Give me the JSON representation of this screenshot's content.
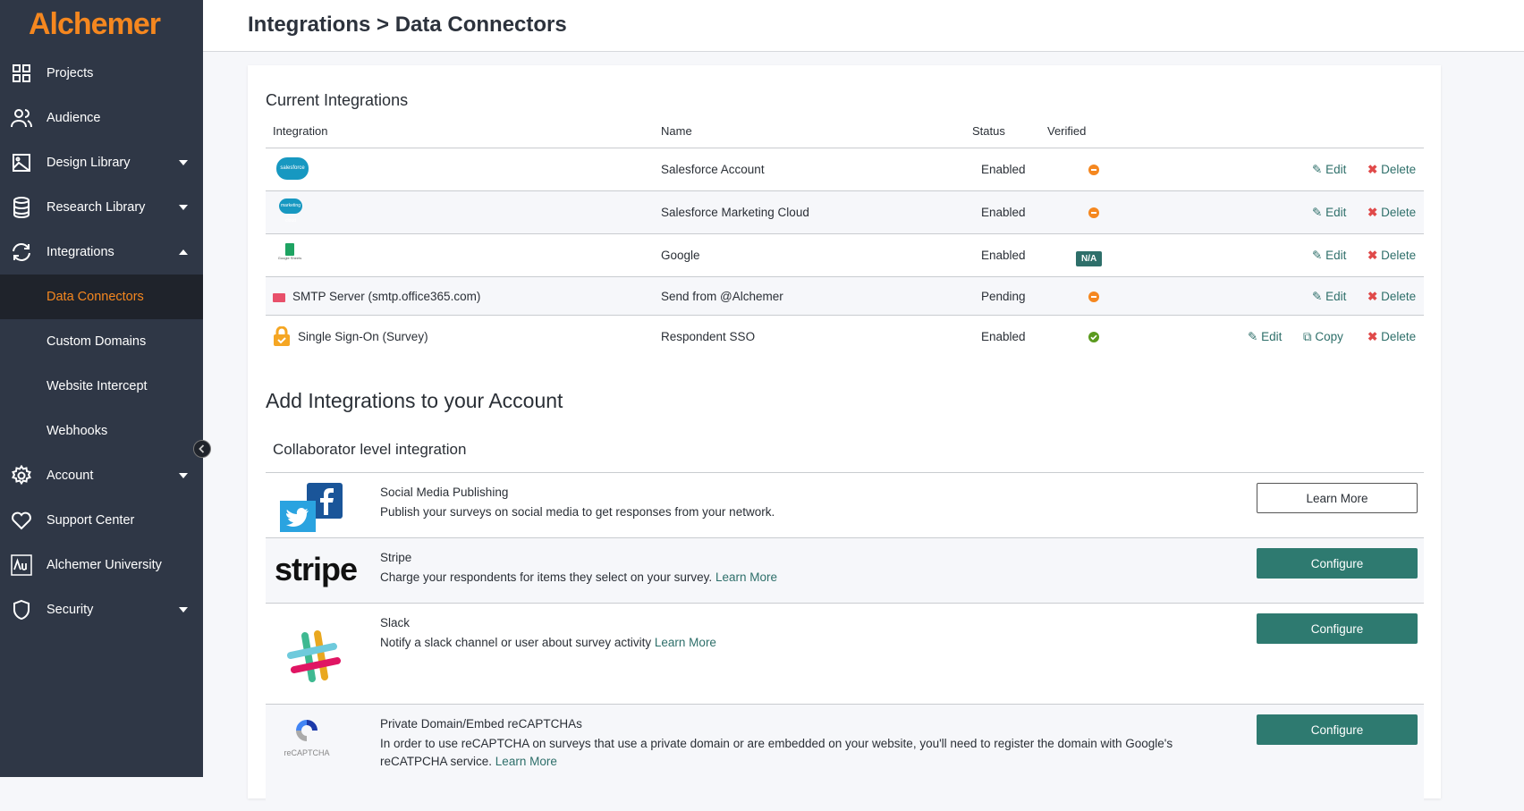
{
  "brand": {
    "logo": "Alchemer",
    "accent": "#f5871f",
    "teal": "#2e7a70"
  },
  "header": {
    "title": "Integrations > Data Connectors"
  },
  "sidebar": {
    "items": [
      {
        "label": "Projects",
        "icon": "grid-icon"
      },
      {
        "label": "Audience",
        "icon": "users-icon"
      },
      {
        "label": "Design Library",
        "icon": "image-icon",
        "caret": "down"
      },
      {
        "label": "Research Library",
        "icon": "database-icon",
        "caret": "down"
      },
      {
        "label": "Integrations",
        "icon": "sync-icon",
        "caret": "up"
      },
      {
        "label": "Data Connectors",
        "active": true
      },
      {
        "label": "Custom Domains"
      },
      {
        "label": "Website Intercept"
      },
      {
        "label": "Webhooks"
      },
      {
        "label": "Account",
        "icon": "gear-icon",
        "caret": "down"
      },
      {
        "label": "Support Center",
        "icon": "heart-icon"
      },
      {
        "label": "Alchemer University",
        "icon": "au-icon"
      },
      {
        "label": "Security",
        "icon": "shield-icon",
        "caret": "down"
      }
    ]
  },
  "current": {
    "title": "Current Integrations",
    "columns": [
      "Integration",
      "Name",
      "Status",
      "Verified"
    ],
    "rows": [
      {
        "integration": "",
        "logo": "salesforce",
        "logo_text": "salesforce",
        "name": "Salesforce Account",
        "status": "Enabled",
        "verified": "pending"
      },
      {
        "integration": "",
        "logo": "salesforce-marketing-cloud",
        "logo_text": "marketing cloud",
        "name": "Salesforce Marketing Cloud",
        "status": "Enabled",
        "verified": "pending"
      },
      {
        "integration": "",
        "logo": "google-sheets",
        "logo_text": "Google Sheets",
        "name": "Google",
        "status": "Enabled",
        "verified": "N/A"
      },
      {
        "integration": "SMTP Server (smtp.office365.com)",
        "logo": "envelope",
        "name": "Send from @Alchemer",
        "status": "Pending",
        "verified": "pending"
      },
      {
        "integration": "Single Sign-On (Survey)",
        "logo": "lock",
        "name": "Respondent SSO",
        "status": "Enabled",
        "verified": "ok"
      }
    ],
    "actions": {
      "edit": "Edit",
      "copy": "Copy",
      "delete": "Delete"
    }
  },
  "add": {
    "title": "Add Integrations to your Account",
    "subtitle": "Collaborator level integration",
    "items": [
      {
        "title": "Social Media Publishing",
        "desc": "Publish your surveys on social media to get responses from your network.",
        "link": "",
        "button": "Learn More"
      },
      {
        "title": "Stripe",
        "desc": "Charge your respondents for items they select on your survey.",
        "link": "Learn More",
        "button": "Configure",
        "logo_text": "stripe"
      },
      {
        "title": "Slack",
        "desc": "Notify a slack channel or user about survey activity",
        "link": "Learn More",
        "button": "Configure"
      },
      {
        "title": "Private Domain/Embed reCAPTCHAs",
        "desc": "In order to use reCAPTCHA on surveys that use a private domain or are embedded on your website, you'll need to register the domain with Google's reCATPCHA service.",
        "link": "Learn More",
        "button": "Configure",
        "logo_text": "reCAPTCHA"
      }
    ]
  }
}
